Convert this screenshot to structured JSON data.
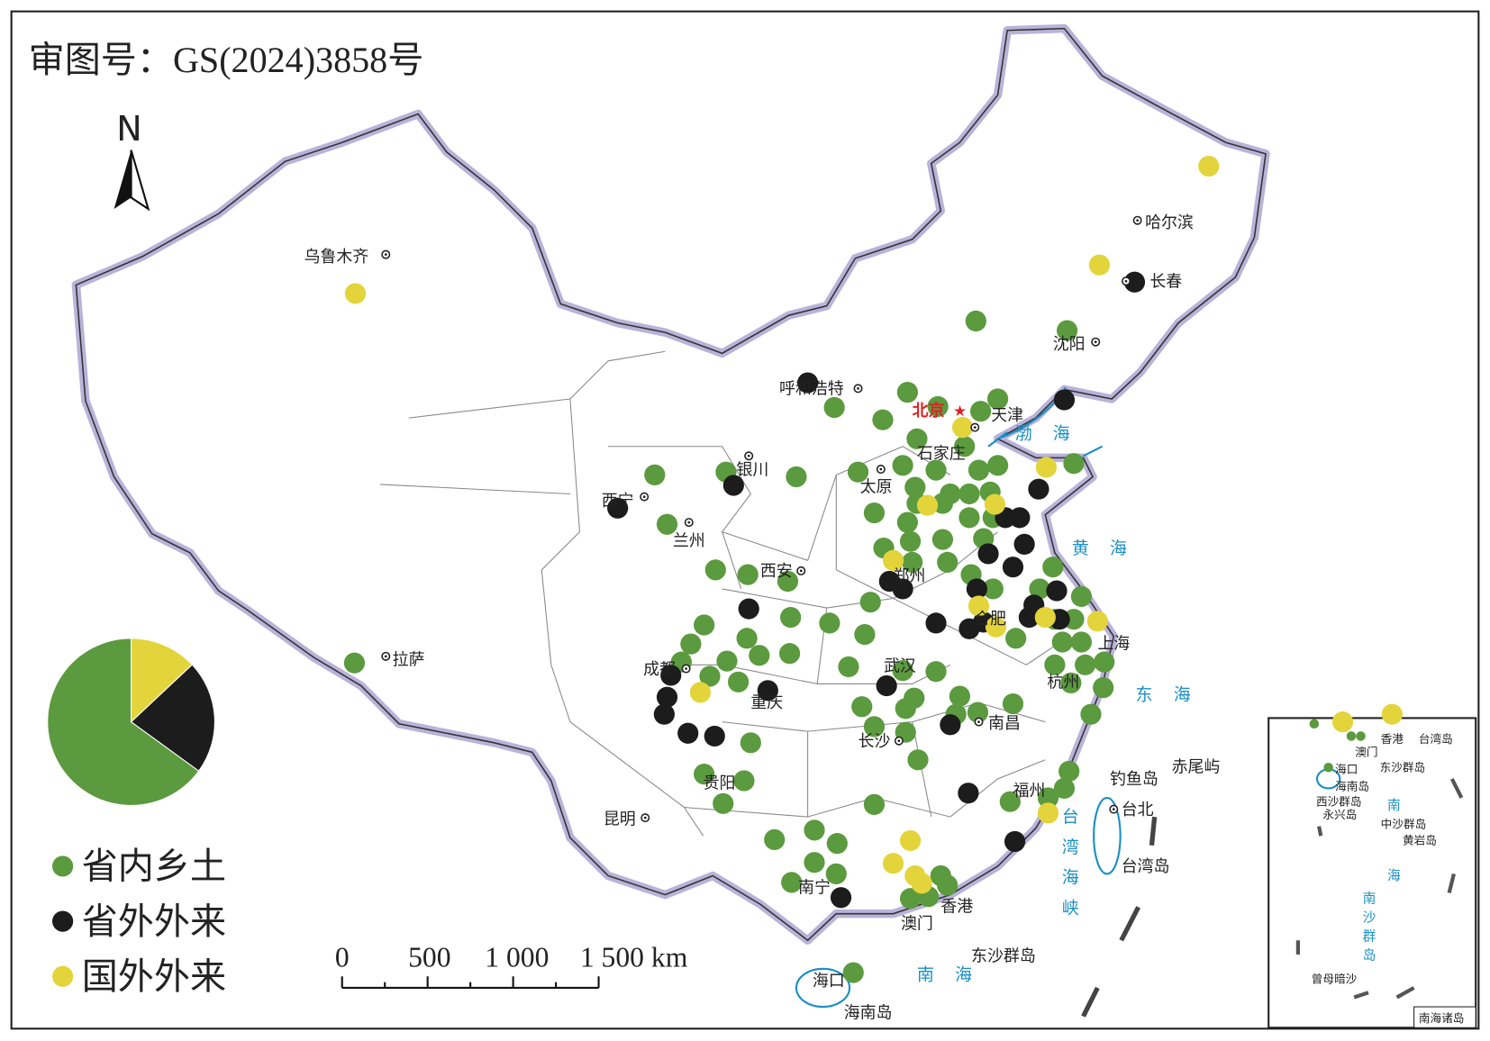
{
  "header": {
    "title": "审图号：GS(2024)3858号"
  },
  "compass": {
    "label": "N"
  },
  "chart_data": {
    "type": "pie",
    "categories": [
      "省内乡土",
      "省外外来",
      "国外外来"
    ],
    "values": [
      65,
      22,
      13
    ],
    "colors": [
      "#5b9a3e",
      "#1c1c1c",
      "#e3d43c"
    ]
  },
  "map": {
    "capital": {
      "label": "北京"
    },
    "places": [
      {
        "label": "乌鲁木齐"
      },
      {
        "label": "哈尔滨"
      },
      {
        "label": "长春"
      },
      {
        "label": "沈阳"
      },
      {
        "label": "呼和浩特"
      },
      {
        "label": "天津"
      },
      {
        "label": "石家庄"
      },
      {
        "label": "太原"
      },
      {
        "label": "银川"
      },
      {
        "label": "西宁"
      },
      {
        "label": "兰州"
      },
      {
        "label": "西安"
      },
      {
        "label": "郑州"
      },
      {
        "label": "合肥"
      },
      {
        "label": "上海"
      },
      {
        "label": "杭州"
      },
      {
        "label": "武汉"
      },
      {
        "label": "成都"
      },
      {
        "label": "重庆"
      },
      {
        "label": "长沙"
      },
      {
        "label": "南昌"
      },
      {
        "label": "福州"
      },
      {
        "label": "台北"
      },
      {
        "label": "贵阳"
      },
      {
        "label": "昆明"
      },
      {
        "label": "南宁"
      },
      {
        "label": "香港"
      },
      {
        "label": "澳门"
      },
      {
        "label": "海口"
      },
      {
        "label": "拉萨"
      }
    ],
    "features": [
      {
        "label": "海南岛"
      },
      {
        "label": "台湾岛"
      },
      {
        "label": "钓鱼岛"
      },
      {
        "label": "赤尾屿"
      },
      {
        "label": "东沙群岛"
      }
    ],
    "seas": [
      {
        "label": "渤海"
      },
      {
        "label": "黄海"
      },
      {
        "label": "东海"
      },
      {
        "label": "台湾海峡"
      },
      {
        "label": "南海"
      }
    ]
  },
  "scale": {
    "labels": [
      "0",
      "500",
      "1 000",
      "1 500 km"
    ]
  },
  "inset": {
    "title": "南海诸岛",
    "labels": [
      {
        "label": "香港"
      },
      {
        "label": "澳门"
      },
      {
        "label": "台湾岛"
      },
      {
        "label": "海口"
      },
      {
        "label": "东沙群岛"
      },
      {
        "label": "海南岛"
      },
      {
        "label": "西沙群岛"
      },
      {
        "label": "永兴岛"
      },
      {
        "label": "中沙群岛"
      },
      {
        "label": "黄岩岛"
      },
      {
        "label": "曾母暗沙"
      }
    ],
    "seas": [
      {
        "label": "南海"
      },
      {
        "label": "南沙群岛"
      }
    ]
  }
}
